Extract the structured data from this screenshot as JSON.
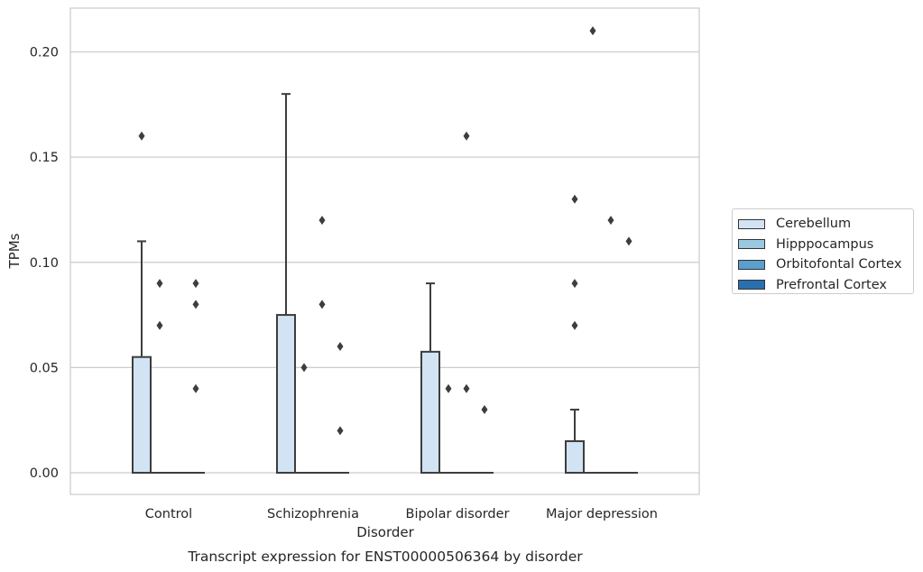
{
  "chart_data": {
    "type": "box",
    "title": "",
    "xlabel": "Disorder",
    "ylabel": "TPMs",
    "caption": "Transcript expression for ENST00000506364 by disorder",
    "categories": [
      "Control",
      "Schizophrenia",
      "Bipolar disorder",
      "Major depression"
    ],
    "y_ticks": [
      "0.00",
      "0.05",
      "0.10",
      "0.15",
      "0.20"
    ],
    "ylim": [
      -0.01,
      0.221
    ],
    "grid": "y",
    "legend_position": "right",
    "series": [
      {
        "name": "Cerebellum",
        "color": "#d2e3f3",
        "boxes": [
          {
            "q1": 0,
            "median": 0,
            "q3": 0.055,
            "whisker_low": 0,
            "whisker_high": 0.11,
            "outliers": [
              0.16
            ]
          },
          {
            "q1": 0,
            "median": 0,
            "q3": 0.075,
            "whisker_low": 0,
            "whisker_high": 0.18,
            "outliers": []
          },
          {
            "q1": 0,
            "median": 0,
            "q3": 0.0575,
            "whisker_low": 0,
            "whisker_high": 0.09,
            "outliers": []
          },
          {
            "q1": 0,
            "median": 0,
            "q3": 0.015,
            "whisker_low": 0,
            "whisker_high": 0.03,
            "outliers": [
              0.13,
              0.09,
              0.07
            ]
          }
        ]
      },
      {
        "name": "Hipppocampus",
        "color": "#9ac8e0",
        "boxes": [
          {
            "q1": 0,
            "median": 0,
            "q3": 0,
            "whisker_low": 0,
            "whisker_high": 0,
            "outliers": [
              0.09,
              0.07
            ]
          },
          {
            "q1": 0,
            "median": 0,
            "q3": 0,
            "whisker_low": 0,
            "whisker_high": 0,
            "outliers": [
              0.05
            ]
          },
          {
            "q1": 0,
            "median": 0,
            "q3": 0,
            "whisker_low": 0,
            "whisker_high": 0,
            "outliers": [
              0.04
            ]
          },
          {
            "q1": 0,
            "median": 0,
            "q3": 0,
            "whisker_low": 0,
            "whisker_high": 0,
            "outliers": [
              0.21
            ]
          }
        ]
      },
      {
        "name": "Orbitofontal Cortex",
        "color": "#5a9fcd",
        "boxes": [
          {
            "q1": 0,
            "median": 0,
            "q3": 0,
            "whisker_low": 0,
            "whisker_high": 0,
            "outliers": []
          },
          {
            "q1": 0,
            "median": 0,
            "q3": 0,
            "whisker_low": 0,
            "whisker_high": 0,
            "outliers": [
              0.12,
              0.08
            ]
          },
          {
            "q1": 0,
            "median": 0,
            "q3": 0,
            "whisker_low": 0,
            "whisker_high": 0,
            "outliers": [
              0.16,
              0.04
            ]
          },
          {
            "q1": 0,
            "median": 0,
            "q3": 0,
            "whisker_low": 0,
            "whisker_high": 0,
            "outliers": [
              0.12
            ]
          }
        ]
      },
      {
        "name": "Prefrontal Cortex",
        "color": "#2a6fb0",
        "boxes": [
          {
            "q1": 0,
            "median": 0,
            "q3": 0,
            "whisker_low": 0,
            "whisker_high": 0,
            "outliers": [
              0.09,
              0.08,
              0.04
            ]
          },
          {
            "q1": 0,
            "median": 0,
            "q3": 0,
            "whisker_low": 0,
            "whisker_high": 0,
            "outliers": [
              0.06,
              0.02
            ]
          },
          {
            "q1": 0,
            "median": 0,
            "q3": 0,
            "whisker_low": 0,
            "whisker_high": 0,
            "outliers": [
              0.03
            ]
          },
          {
            "q1": 0,
            "median": 0,
            "q3": 0,
            "whisker_low": 0,
            "whisker_high": 0,
            "outliers": [
              0.11
            ]
          }
        ]
      }
    ]
  }
}
